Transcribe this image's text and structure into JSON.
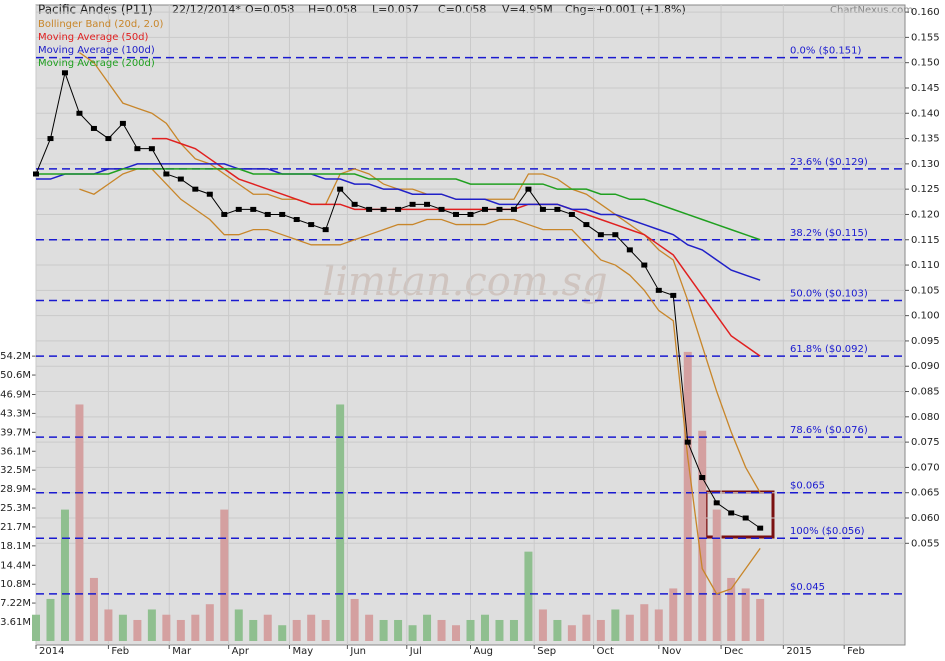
{
  "chart_data": {
    "type": "stock",
    "header": [
      "Pacific Andes (P11)",
      "22/12/2014*",
      "O=0.058",
      "H=0.058",
      "L=0.057",
      "C=0.058",
      "V=4.95M",
      "Chg=+0.001 (+1.8%)"
    ],
    "brand": "ChartNexus.com",
    "watermark": "limtan.com.sg",
    "x": [
      0,
      1,
      2,
      3,
      4,
      5,
      6,
      7,
      8,
      9,
      10,
      11,
      12,
      13,
      14,
      15,
      16,
      17,
      18,
      19,
      20,
      21,
      22,
      23,
      24,
      25,
      26,
      27,
      28,
      29,
      30,
      31,
      32,
      33,
      34,
      35,
      36,
      37,
      38,
      39,
      40,
      41,
      42,
      43,
      44,
      45,
      46,
      47,
      48,
      49,
      50
    ],
    "xlim": [
      0,
      60
    ],
    "xticks": [
      {
        "value": 0,
        "label": "2014"
      },
      {
        "value": 5,
        "label": "Feb"
      },
      {
        "value": 9.2,
        "label": "Mar"
      },
      {
        "value": 13.3,
        "label": "Apr"
      },
      {
        "value": 17.5,
        "label": "May"
      },
      {
        "value": 21.5,
        "label": "Jun"
      },
      {
        "value": 25.6,
        "label": "Jul"
      },
      {
        "value": 30,
        "label": "Aug"
      },
      {
        "value": 34.4,
        "label": "Sep"
      },
      {
        "value": 38.5,
        "label": "Oct"
      },
      {
        "value": 43,
        "label": "Nov"
      },
      {
        "value": 47.3,
        "label": "Dec"
      },
      {
        "value": 51.6,
        "label": "2015"
      },
      {
        "value": 55.8,
        "label": "Feb"
      }
    ],
    "close": [
      0.128,
      0.135,
      0.148,
      0.14,
      0.137,
      0.135,
      0.138,
      0.133,
      0.133,
      0.128,
      0.127,
      0.125,
      0.124,
      0.12,
      0.121,
      0.121,
      0.12,
      0.12,
      0.119,
      0.118,
      0.117,
      0.125,
      0.122,
      0.121,
      0.121,
      0.121,
      0.122,
      0.122,
      0.121,
      0.12,
      0.12,
      0.121,
      0.121,
      0.121,
      0.125,
      0.121,
      0.121,
      0.12,
      0.118,
      0.116,
      0.116,
      0.113,
      0.11,
      0.105,
      0.104,
      0.075,
      0.068,
      0.063,
      0.061,
      0.06,
      0.058
    ],
    "close_color": "#000000",
    "volume": [
      5,
      8,
      25,
      45,
      12,
      6,
      5,
      4,
      6,
      5,
      4,
      5,
      7,
      25,
      6,
      4,
      5,
      3,
      4,
      5,
      4,
      45,
      8,
      5,
      4,
      4,
      3,
      5,
      4,
      3,
      4,
      5,
      4,
      4,
      17,
      6,
      4,
      3,
      5,
      4,
      6,
      5,
      7,
      6,
      10,
      55,
      40,
      25,
      12,
      10,
      8
    ],
    "volume_up_color": "#8fbf8f",
    "volume_down_color": "#d4a0a0",
    "ylim": [
      0.0349,
      0.1614
    ],
    "yticks": [
      {
        "value": 0.055,
        "label": "0.055"
      },
      {
        "value": 0.06,
        "label": "0.060"
      },
      {
        "value": 0.065,
        "label": "0.065"
      },
      {
        "value": 0.07,
        "label": "0.070"
      },
      {
        "value": 0.075,
        "label": "0.075"
      },
      {
        "value": 0.08,
        "label": "0.080"
      },
      {
        "value": 0.085,
        "label": "0.085"
      },
      {
        "value": 0.09,
        "label": "0.090"
      },
      {
        "value": 0.095,
        "label": "0.095"
      },
      {
        "value": 0.1,
        "label": "0.100"
      },
      {
        "value": 0.105,
        "label": "0.105"
      },
      {
        "value": 0.11,
        "label": "0.110"
      },
      {
        "value": 0.115,
        "label": "0.115"
      },
      {
        "value": 0.12,
        "label": "0.120"
      },
      {
        "value": 0.125,
        "label": "0.125"
      },
      {
        "value": 0.13,
        "label": "0.130"
      },
      {
        "value": 0.135,
        "label": "0.135"
      },
      {
        "value": 0.14,
        "label": "0.140"
      },
      {
        "value": 0.145,
        "label": "0.145"
      },
      {
        "value": 0.15,
        "label": "0.150"
      },
      {
        "value": 0.155,
        "label": "0.155"
      },
      {
        "value": 0.16,
        "label": "0.160"
      }
    ],
    "y2lim": [
      -0.76,
      121
    ],
    "y2ticks": [
      {
        "value": 3.61,
        "label": "3.61M"
      },
      {
        "value": 7.22,
        "label": "7.22M"
      },
      {
        "value": 10.8,
        "label": "10.8M"
      },
      {
        "value": 14.4,
        "label": "14.4M"
      },
      {
        "value": 18.1,
        "label": "18.1M"
      },
      {
        "value": 21.7,
        "label": "21.7M"
      },
      {
        "value": 25.3,
        "label": "25.3M"
      },
      {
        "value": 28.9,
        "label": "28.9M"
      },
      {
        "value": 32.5,
        "label": "32.5M"
      },
      {
        "value": 36.1,
        "label": "36.1M"
      },
      {
        "value": 39.7,
        "label": "39.7M"
      },
      {
        "value": 43.3,
        "label": "43.3M"
      },
      {
        "value": 46.9,
        "label": "46.9M"
      },
      {
        "value": 50.6,
        "label": "50.6M"
      },
      {
        "value": 54.2,
        "label": "54.2M"
      }
    ],
    "grid": true,
    "series": [
      {
        "name": "Bollinger Band (20d, 2.0)",
        "color": "#c8862a",
        "upper": [
          null,
          null,
          null,
          0.152,
          0.15,
          0.146,
          0.142,
          0.141,
          0.14,
          0.138,
          0.134,
          0.131,
          0.13,
          0.128,
          0.126,
          0.124,
          0.124,
          0.123,
          0.123,
          0.122,
          0.122,
          0.128,
          0.129,
          0.128,
          0.126,
          0.125,
          0.125,
          0.124,
          0.124,
          0.123,
          0.123,
          0.123,
          0.123,
          0.123,
          0.128,
          0.128,
          0.127,
          0.125,
          0.124,
          0.122,
          0.12,
          0.118,
          0.116,
          0.113,
          0.111,
          0.103,
          0.094,
          0.085,
          0.077,
          0.07,
          0.065
        ],
        "lower": [
          null,
          null,
          null,
          0.125,
          0.124,
          0.126,
          0.128,
          0.129,
          0.129,
          0.126,
          0.123,
          0.121,
          0.119,
          0.116,
          0.116,
          0.117,
          0.117,
          0.116,
          0.115,
          0.114,
          0.114,
          0.114,
          0.115,
          0.116,
          0.117,
          0.118,
          0.118,
          0.119,
          0.119,
          0.118,
          0.118,
          0.118,
          0.119,
          0.119,
          0.118,
          0.117,
          0.117,
          0.117,
          0.114,
          0.111,
          0.11,
          0.108,
          0.105,
          0.101,
          0.099,
          0.072,
          0.05,
          0.045,
          0.046,
          0.05,
          0.054
        ]
      },
      {
        "name": "Moving Average (50d)",
        "color": "#e02020",
        "values": [
          null,
          null,
          null,
          null,
          null,
          null,
          null,
          null,
          0.135,
          0.135,
          0.134,
          0.133,
          0.131,
          0.129,
          0.127,
          0.126,
          0.125,
          0.124,
          0.123,
          0.122,
          0.122,
          0.122,
          0.121,
          0.121,
          0.121,
          0.121,
          0.121,
          0.121,
          0.121,
          0.121,
          0.121,
          0.121,
          0.121,
          0.121,
          0.122,
          0.122,
          0.122,
          0.121,
          0.12,
          0.119,
          0.118,
          0.117,
          0.116,
          0.114,
          0.112,
          0.108,
          0.104,
          0.1,
          0.096,
          0.094,
          0.092
        ]
      },
      {
        "name": "Moving Average (100d)",
        "color": "#2020c8",
        "values": [
          0.127,
          0.127,
          0.128,
          0.128,
          0.128,
          0.129,
          0.129,
          0.13,
          0.13,
          0.13,
          0.13,
          0.13,
          0.13,
          0.13,
          0.129,
          0.129,
          0.129,
          0.128,
          0.128,
          0.128,
          0.127,
          0.127,
          0.126,
          0.126,
          0.125,
          0.125,
          0.124,
          0.124,
          0.124,
          0.123,
          0.123,
          0.123,
          0.122,
          0.122,
          0.122,
          0.122,
          0.122,
          0.121,
          0.121,
          0.12,
          0.12,
          0.119,
          0.118,
          0.117,
          0.116,
          0.114,
          0.113,
          0.111,
          0.109,
          0.108,
          0.107
        ]
      },
      {
        "name": "Moving Average (200d)",
        "color": "#20a020",
        "values": [
          0.128,
          0.128,
          0.128,
          0.128,
          0.128,
          0.128,
          0.129,
          0.129,
          0.129,
          0.129,
          0.129,
          0.129,
          0.129,
          0.129,
          0.129,
          0.128,
          0.128,
          0.128,
          0.128,
          0.128,
          0.128,
          0.128,
          0.128,
          0.127,
          0.127,
          0.127,
          0.127,
          0.127,
          0.127,
          0.127,
          0.126,
          0.126,
          0.126,
          0.126,
          0.126,
          0.126,
          0.125,
          0.125,
          0.125,
          0.124,
          0.124,
          0.123,
          0.123,
          0.122,
          0.121,
          0.12,
          0.119,
          0.118,
          0.117,
          0.116,
          0.115
        ]
      }
    ],
    "fib_levels": [
      {
        "value": 0.151,
        "label": "0.0%  ($0.151)"
      },
      {
        "value": 0.129,
        "label": "23.6%  ($0.129)"
      },
      {
        "value": 0.115,
        "label": "38.2%  ($0.115)"
      },
      {
        "value": 0.103,
        "label": "50.0%  ($0.103)"
      },
      {
        "value": 0.092,
        "label": "61.8%  ($0.092)"
      },
      {
        "value": 0.076,
        "label": "78.6%  ($0.076)"
      },
      {
        "value": 0.065,
        "label": "$0.065"
      },
      {
        "value": 0.056,
        "label": "100%  ($0.056)"
      },
      {
        "value": 0.045,
        "label": "$0.045"
      }
    ],
    "fib_color": "#1a1ad0"
  }
}
